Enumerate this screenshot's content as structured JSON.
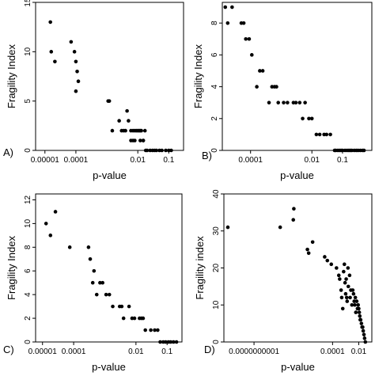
{
  "chart_data": [
    {
      "type": "scatter",
      "panel_label": "A)",
      "xlabel": "p-value",
      "ylabel": "Fragility Index",
      "xscale": "log",
      "xlim": [
        5e-06,
        0.3
      ],
      "ylim": [
        0,
        15
      ],
      "xticks": [
        {
          "value": 1e-05,
          "label": "0.00001"
        },
        {
          "value": 0.0001,
          "label": "0.0001"
        },
        {
          "value": 0.01,
          "label": "0.01"
        },
        {
          "value": 0.1,
          "label": "0.1"
        }
      ],
      "yticks": [
        {
          "value": 0,
          "label": "0"
        },
        {
          "value": 5,
          "label": "5"
        },
        {
          "value": 10,
          "label": "10"
        },
        {
          "value": 15,
          "label": "15"
        }
      ],
      "grid": false,
      "x": [
        1.5e-05,
        1.6e-05,
        2.1e-05,
        7e-05,
        9e-05,
        0.0001,
        0.00011,
        0.00012,
        0.0001,
        0.0011,
        0.0012,
        0.0015,
        0.0025,
        0.004,
        0.0035,
        0.003,
        0.0045,
        0.005,
        0.006,
        0.007,
        0.008,
        0.009,
        0.01,
        0.011,
        0.012,
        0.013,
        0.015,
        0.017,
        0.006,
        0.007,
        0.008,
        0.012,
        0.015,
        0.018,
        0.02,
        0.025,
        0.03,
        0.035,
        0.04,
        0.05,
        0.06,
        0.08,
        0.1,
        0.12
      ],
      "y": [
        13,
        10,
        9,
        11,
        10,
        9,
        8,
        7,
        6,
        5,
        5,
        2,
        3,
        2,
        2,
        2,
        4,
        3,
        2,
        2,
        2,
        2,
        2,
        2,
        2,
        2,
        1,
        2,
        1,
        1,
        1,
        1,
        1,
        0,
        0,
        0,
        0,
        0,
        0,
        0,
        0,
        0,
        0,
        0
      ]
    },
    {
      "type": "scatter",
      "panel_label": "B)",
      "xlabel": "p-value",
      "ylabel": "Fragility Index",
      "xscale": "log",
      "xlim": [
        1.2e-05,
        0.9
      ],
      "ylim": [
        0,
        9.3
      ],
      "xticks": [
        {
          "value": 0.0001,
          "label": "0.0001"
        },
        {
          "value": 0.01,
          "label": "0.01"
        },
        {
          "value": 0.1,
          "label": "0.1"
        }
      ],
      "yticks": [
        {
          "value": 0,
          "label": "0"
        },
        {
          "value": 2,
          "label": "2"
        },
        {
          "value": 4,
          "label": "4"
        },
        {
          "value": 6,
          "label": "6"
        },
        {
          "value": 8,
          "label": "8"
        }
      ],
      "grid": false,
      "x": [
        1.5e-05,
        1.8e-05,
        2.5e-05,
        5e-05,
        6e-05,
        7e-05,
        9e-05,
        0.00011,
        0.00016,
        0.0002,
        0.00025,
        0.0004,
        0.0005,
        0.0006,
        0.0007,
        0.0008,
        0.0012,
        0.0016,
        0.0025,
        0.003,
        0.004,
        0.005,
        0.006,
        0.008,
        0.01,
        0.014,
        0.018,
        0.025,
        0.03,
        0.04,
        0.055,
        0.06,
        0.07,
        0.08,
        0.09,
        0.1,
        0.12,
        0.14,
        0.16,
        0.18,
        0.2,
        0.24,
        0.28,
        0.32,
        0.38,
        0.45,
        0.5
      ],
      "y": [
        9,
        8,
        9,
        8,
        8,
        7,
        7,
        6,
        4,
        5,
        5,
        3,
        4,
        4,
        4,
        3,
        3,
        3,
        3,
        3,
        3,
        2,
        3,
        2,
        2,
        1,
        1,
        1,
        1,
        1,
        0,
        0,
        0,
        0,
        0,
        0,
        0,
        0,
        0,
        0,
        0,
        0,
        0,
        0,
        0,
        0,
        0
      ]
    },
    {
      "type": "scatter",
      "panel_label": "C)",
      "xlabel": "p-value",
      "ylabel": "Fragility Index",
      "xscale": "log",
      "xlim": [
        6e-06,
        0.3
      ],
      "ylim": [
        0,
        12.5
      ],
      "xticks": [
        {
          "value": 1e-05,
          "label": "0.00001"
        },
        {
          "value": 0.0001,
          "label": "0.0001"
        },
        {
          "value": 0.01,
          "label": "0.01"
        },
        {
          "value": 0.1,
          "label": "0.1"
        }
      ],
      "yticks": [
        {
          "value": 0,
          "label": "0"
        },
        {
          "value": 2,
          "label": "2"
        },
        {
          "value": 4,
          "label": "4"
        },
        {
          "value": 6,
          "label": "6"
        },
        {
          "value": 8,
          "label": "8"
        },
        {
          "value": 10,
          "label": "10"
        },
        {
          "value": 12,
          "label": "12"
        }
      ],
      "grid": false,
      "x": [
        1.3e-05,
        1.8e-05,
        2.6e-05,
        7.5e-05,
        0.0003,
        0.00034,
        0.00045,
        0.00041,
        0.00055,
        0.0007,
        0.00085,
        0.0011,
        0.0014,
        0.0018,
        0.003,
        0.0035,
        0.004,
        0.006,
        0.0075,
        0.009,
        0.013,
        0.015,
        0.017,
        0.02,
        0.03,
        0.04,
        0.05,
        0.06,
        0.075,
        0.09,
        0.11,
        0.13,
        0.16,
        0.2
      ],
      "y": [
        10,
        9,
        11,
        8,
        8,
        7,
        6,
        5,
        4,
        5,
        5,
        4,
        4,
        3,
        3,
        3,
        2,
        3,
        2,
        2,
        2,
        2,
        2,
        1,
        1,
        1,
        1,
        0,
        0,
        0,
        0,
        0,
        0,
        0
      ]
    },
    {
      "type": "scatter",
      "panel_label": "D)",
      "xlabel": "p-value",
      "ylabel": "Fragility index",
      "xscale": "log",
      "xlim": [
        5e-13,
        0.1
      ],
      "ylim": [
        0,
        40
      ],
      "xticks": [
        {
          "value": 1e-10,
          "label": "0.0000000001"
        },
        {
          "value": 0.0001,
          "label": "0.0001"
        },
        {
          "value": 0.01,
          "label": "0.01"
        }
      ],
      "yticks": [
        {
          "value": 0,
          "label": "0"
        },
        {
          "value": 10,
          "label": "10"
        },
        {
          "value": 20,
          "label": "20"
        },
        {
          "value": 30,
          "label": "30"
        },
        {
          "value": 40,
          "label": "40"
        }
      ],
      "grid": false,
      "x": [
        1e-12,
        1e-08,
        1e-07,
        1.1e-07,
        1.2e-06,
        1.5e-06,
        3e-06,
        2.5e-05,
        4e-05,
        8e-05,
        0.0002,
        0.0003,
        0.00035,
        0.00045,
        0.0005,
        0.0006,
        0.0007,
        0.0008,
        0.0009,
        0.001,
        0.0011,
        0.0012,
        0.0013,
        0.0015,
        0.0016,
        0.002,
        0.0022,
        0.0025,
        0.003,
        0.0035,
        0.004,
        0.0045,
        0.005,
        0.0055,
        0.006,
        0.007,
        0.008,
        0.009,
        0.01,
        0.011,
        0.012,
        0.013,
        0.014,
        0.016,
        0.018,
        0.02,
        0.022,
        0.025,
        0.028,
        0.032
      ],
      "y": [
        31,
        31,
        33,
        36,
        25,
        24,
        27,
        23,
        22,
        21,
        20,
        18,
        17,
        14,
        12,
        9,
        19,
        21,
        16,
        13,
        17,
        12,
        11,
        20,
        15,
        18,
        12,
        14,
        10,
        14,
        13,
        11,
        10,
        12,
        8,
        11,
        9,
        10,
        9,
        8,
        7,
        6,
        6,
        5,
        4,
        4,
        3,
        2,
        1,
        0
      ]
    }
  ]
}
